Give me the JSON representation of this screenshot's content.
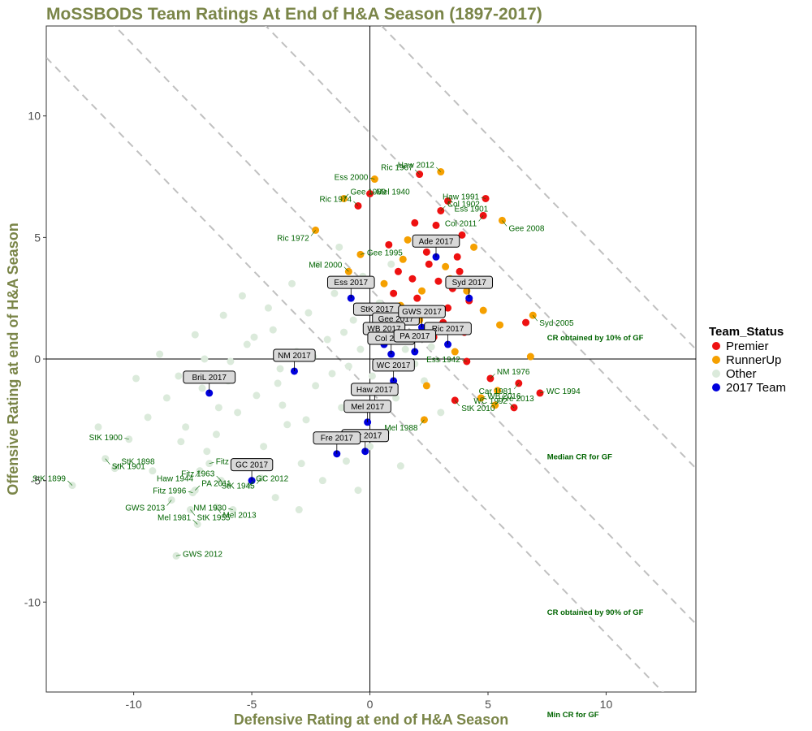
{
  "chart_data": {
    "type": "scatter",
    "title": "MoSSBODS Team Ratings At End of H&A Season (1897-2017)",
    "xlabel": "Defensive Rating at end of H&A Season",
    "ylabel": "Offensive Rating at end of H&A Season",
    "xlim": [
      -13.7,
      13.8
    ],
    "ylim": [
      -13.7,
      13.7
    ],
    "x_ticks": [
      -10,
      -5,
      0,
      5,
      10
    ],
    "y_ticks": [
      -10,
      -5,
      0,
      5,
      10
    ],
    "grid": false,
    "colors": {
      "title": "#7a8548",
      "Premier": "#ee1111",
      "RunnerUp": "#f5a000",
      "Other": "#dbeadb",
      "2017 Team": "#0000dd",
      "label_text": "#006400",
      "reference_line": "#c0c0c0"
    },
    "legend": {
      "title": "Team_Status",
      "position": "right",
      "entries": [
        "Premier",
        "RunnerUp",
        "Other",
        "2017 Team"
      ]
    },
    "reference_lines": [
      {
        "label": "CR obtained by 10% of GF",
        "intercept": 14.2
      },
      {
        "label": "Median CR for GF",
        "intercept": 9.3
      },
      {
        "label": "CR obtained by 90% of GF",
        "intercept": 2.9
      },
      {
        "label": "Min CR for GF",
        "intercept": -1.3
      }
    ],
    "series": [
      {
        "name": "Premier",
        "points": [
          {
            "x": 2.1,
            "y": 7.6,
            "label": "Ric 1967"
          },
          {
            "x": 3.3,
            "y": 6.5,
            "label": "Ess 1901"
          },
          {
            "x": 4.9,
            "y": 6.6,
            "label": "Haw 1991"
          },
          {
            "x": 3.0,
            "y": 6.1,
            "label": "Col 1902"
          },
          {
            "x": 4.8,
            "y": 5.9,
            "label": "Col 2011"
          },
          {
            "x": 0.0,
            "y": 6.8,
            "label": "Mel 1940"
          },
          {
            "x": -0.5,
            "y": 6.3,
            "label": "Ric 1974"
          },
          {
            "x": 6.6,
            "y": 1.5,
            "label": ""
          },
          {
            "x": 4.1,
            "y": -0.1,
            "label": "Ess 1942"
          },
          {
            "x": 5.1,
            "y": -0.8,
            "label": "NM 1976"
          },
          {
            "x": 6.3,
            "y": -1.0,
            "label": "Car 1981"
          },
          {
            "x": 7.2,
            "y": -1.4,
            "label": "WC 1994"
          },
          {
            "x": 6.1,
            "y": -2.0,
            "label": "WC 1992"
          },
          {
            "x": 3.6,
            "y": -1.7,
            "label": "StK 2010"
          },
          {
            "x": 1.9,
            "y": 5.6,
            "label": ""
          },
          {
            "x": 2.8,
            "y": 5.5,
            "label": ""
          },
          {
            "x": 3.9,
            "y": 5.1,
            "label": ""
          },
          {
            "x": 2.4,
            "y": 4.4,
            "label": ""
          },
          {
            "x": 3.7,
            "y": 4.2,
            "label": ""
          },
          {
            "x": 1.2,
            "y": 3.6,
            "label": ""
          },
          {
            "x": 2.9,
            "y": 3.2,
            "label": ""
          },
          {
            "x": 3.5,
            "y": 2.9,
            "label": ""
          },
          {
            "x": 2.0,
            "y": 2.5,
            "label": ""
          },
          {
            "x": 4.2,
            "y": 2.4,
            "label": ""
          },
          {
            "x": 1.5,
            "y": 1.9,
            "label": ""
          },
          {
            "x": 3.1,
            "y": 1.5,
            "label": ""
          },
          {
            "x": 2.5,
            "y": 3.9,
            "label": ""
          },
          {
            "x": 4.6,
            "y": 3.2,
            "label": ""
          },
          {
            "x": 0.8,
            "y": 4.7,
            "label": ""
          },
          {
            "x": 3.3,
            "y": 2.1,
            "label": ""
          },
          {
            "x": 1.0,
            "y": 2.7,
            "label": ""
          },
          {
            "x": 4.0,
            "y": 1.1,
            "label": ""
          },
          {
            "x": 2.7,
            "y": 0.9,
            "label": ""
          },
          {
            "x": 1.8,
            "y": 3.3,
            "label": ""
          },
          {
            "x": 3.8,
            "y": 3.6,
            "label": ""
          },
          {
            "x": 0.9,
            "y": 1.3,
            "label": ""
          }
        ]
      },
      {
        "name": "RunnerUp",
        "points": [
          {
            "x": 3.0,
            "y": 7.7,
            "label": "Haw 2012"
          },
          {
            "x": 5.6,
            "y": 5.7,
            "label": "Gee 2008"
          },
          {
            "x": 0.2,
            "y": 7.4,
            "label": "Ess 2000"
          },
          {
            "x": -1.1,
            "y": 6.6,
            "label": "Gee 1989"
          },
          {
            "x": -2.3,
            "y": 5.3,
            "label": "Ric 1972"
          },
          {
            "x": -0.4,
            "y": 4.3,
            "label": "Gee 1995"
          },
          {
            "x": -0.9,
            "y": 3.6,
            "label": "Mel 2000"
          },
          {
            "x": 6.9,
            "y": 1.8,
            "label": "Syd 2005"
          },
          {
            "x": 5.4,
            "y": -1.3,
            "label": ""
          },
          {
            "x": 5.3,
            "y": -1.9,
            "label": "Fre 2013"
          },
          {
            "x": 2.3,
            "y": -2.5,
            "label": "Mel 1988"
          },
          {
            "x": 4.7,
            "y": -1.6,
            "label": "WB 2016"
          },
          {
            "x": 1.6,
            "y": 4.9,
            "label": ""
          },
          {
            "x": 2.6,
            "y": 4.8,
            "label": ""
          },
          {
            "x": 3.4,
            "y": 3.3,
            "label": ""
          },
          {
            "x": 2.2,
            "y": 2.8,
            "label": ""
          },
          {
            "x": 1.3,
            "y": 2.2,
            "label": ""
          },
          {
            "x": 4.4,
            "y": 4.6,
            "label": ""
          },
          {
            "x": 2.1,
            "y": 1.6,
            "label": ""
          },
          {
            "x": 3.6,
            "y": 0.3,
            "label": ""
          },
          {
            "x": 0.6,
            "y": 3.1,
            "label": ""
          },
          {
            "x": 4.8,
            "y": 2.0,
            "label": ""
          },
          {
            "x": 1.4,
            "y": 4.1,
            "label": ""
          },
          {
            "x": 3.2,
            "y": 3.8,
            "label": ""
          },
          {
            "x": 5.5,
            "y": 1.4,
            "label": ""
          },
          {
            "x": 2.4,
            "y": -1.1,
            "label": ""
          },
          {
            "x": 6.8,
            "y": 0.1,
            "label": ""
          },
          {
            "x": 4.1,
            "y": 2.8,
            "label": ""
          }
        ]
      },
      {
        "name": "2017 Team",
        "points": [
          {
            "x": 2.8,
            "y": 4.2,
            "label": "Ade 2017"
          },
          {
            "x": 4.2,
            "y": 2.5,
            "label": "Syd 2017"
          },
          {
            "x": -0.8,
            "y": 2.5,
            "label": "Ess 2017"
          },
          {
            "x": 0.3,
            "y": 1.4,
            "label": "StK 2017"
          },
          {
            "x": 1.1,
            "y": 1.0,
            "label": "Gee 2017"
          },
          {
            "x": 2.2,
            "y": 1.3,
            "label": "GWS 2017"
          },
          {
            "x": 0.6,
            "y": 0.6,
            "label": "WB 2017"
          },
          {
            "x": 3.3,
            "y": 0.6,
            "label": "Ric 2017"
          },
          {
            "x": 0.9,
            "y": 0.2,
            "label": "Col 2017"
          },
          {
            "x": 1.9,
            "y": 0.3,
            "label": "PA 2017"
          },
          {
            "x": 1.0,
            "y": -0.9,
            "label": "WC 2017"
          },
          {
            "x": -3.2,
            "y": -0.5,
            "label": "NM 2017"
          },
          {
            "x": -6.8,
            "y": -1.4,
            "label": "BriL 2017"
          },
          {
            "x": 0.2,
            "y": -1.9,
            "label": "Haw 2017"
          },
          {
            "x": -0.1,
            "y": -2.6,
            "label": "Mel 2017"
          },
          {
            "x": -0.2,
            "y": -3.8,
            "label": "Car 2017"
          },
          {
            "x": -1.4,
            "y": -3.9,
            "label": "Fre 2017"
          },
          {
            "x": -5.0,
            "y": -5.0,
            "label": "GC 2017"
          }
        ]
      },
      {
        "name": "Other",
        "points": [
          {
            "x": -12.6,
            "y": -5.2,
            "label": "StK 1899"
          },
          {
            "x": -11.2,
            "y": -4.1,
            "label": "StK 1901"
          },
          {
            "x": -10.2,
            "y": -3.3,
            "label": "StK 1900"
          },
          {
            "x": -10.8,
            "y": -4.5,
            "label": "StK 1898"
          },
          {
            "x": -8.4,
            "y": -5.8,
            "label": "GWS 2013"
          },
          {
            "x": -8.2,
            "y": -8.1,
            "label": "GWS 2012"
          },
          {
            "x": -7.3,
            "y": -6.8,
            "label": "Mel 1981"
          },
          {
            "x": -7.6,
            "y": -6.2,
            "label": "StK 1955"
          },
          {
            "x": -7.5,
            "y": -5.5,
            "label": "Fitz 1996"
          },
          {
            "x": -7.4,
            "y": -5.4,
            "label": "PA 2011"
          },
          {
            "x": -7.2,
            "y": -4.6,
            "label": "Haw 1944"
          },
          {
            "x": -6.8,
            "y": -4.3,
            "label": "Fitz 1995"
          },
          {
            "x": -6.3,
            "y": -5.0,
            "label": "Fitz 1963"
          },
          {
            "x": -6.5,
            "y": -6.1,
            "label": "Mel 2013"
          },
          {
            "x": -5.8,
            "y": -6.2,
            "label": "NM 1930"
          },
          {
            "x": -5.1,
            "y": -5.2,
            "label": "GC 2012"
          },
          {
            "x": -4.6,
            "y": -4.9,
            "label": "StK 1945"
          },
          {
            "x": -9.4,
            "y": -2.4,
            "label": ""
          },
          {
            "x": -8.6,
            "y": -1.6,
            "label": ""
          },
          {
            "x": -7.8,
            "y": -2.8,
            "label": ""
          },
          {
            "x": -7.1,
            "y": -1.2,
            "label": ""
          },
          {
            "x": -6.5,
            "y": -3.1,
            "label": ""
          },
          {
            "x": -6.0,
            "y": -0.9,
            "label": ""
          },
          {
            "x": -5.6,
            "y": -2.2,
            "label": ""
          },
          {
            "x": -5.2,
            "y": 0.6,
            "label": ""
          },
          {
            "x": -4.8,
            "y": -1.5,
            "label": ""
          },
          {
            "x": -4.5,
            "y": -3.6,
            "label": ""
          },
          {
            "x": -4.1,
            "y": 1.2,
            "label": ""
          },
          {
            "x": -3.8,
            "y": -0.4,
            "label": ""
          },
          {
            "x": -3.5,
            "y": -2.7,
            "label": ""
          },
          {
            "x": -3.1,
            "y": 0.3,
            "label": ""
          },
          {
            "x": -2.9,
            "y": -4.3,
            "label": ""
          },
          {
            "x": -2.6,
            "y": 1.9,
            "label": ""
          },
          {
            "x": -2.3,
            "y": -1.1,
            "label": ""
          },
          {
            "x": -2.0,
            "y": -3.3,
            "label": ""
          },
          {
            "x": -1.8,
            "y": 0.8,
            "label": ""
          },
          {
            "x": -1.5,
            "y": 2.7,
            "label": ""
          },
          {
            "x": -1.2,
            "y": -2.0,
            "label": ""
          },
          {
            "x": -0.9,
            "y": -0.3,
            "label": ""
          },
          {
            "x": -0.7,
            "y": 1.6,
            "label": ""
          },
          {
            "x": -0.5,
            "y": -5.4,
            "label": ""
          },
          {
            "x": -0.3,
            "y": 3.4,
            "label": ""
          },
          {
            "x": 0.1,
            "y": -0.7,
            "label": ""
          },
          {
            "x": 0.4,
            "y": 2.3,
            "label": ""
          },
          {
            "x": 0.7,
            "y": -3.0,
            "label": ""
          },
          {
            "x": 1.1,
            "y": -1.6,
            "label": ""
          },
          {
            "x": 1.5,
            "y": 0.4,
            "label": ""
          },
          {
            "x": 1.9,
            "y": -0.2,
            "label": ""
          },
          {
            "x": 2.3,
            "y": -0.9,
            "label": ""
          },
          {
            "x": 2.6,
            "y": 0.5,
            "label": ""
          },
          {
            "x": -9.9,
            "y": -0.8,
            "label": ""
          },
          {
            "x": -8.9,
            "y": 0.2,
            "label": ""
          },
          {
            "x": -7.4,
            "y": 1.0,
            "label": ""
          },
          {
            "x": -6.2,
            "y": 1.8,
            "label": ""
          },
          {
            "x": -5.4,
            "y": 2.6,
            "label": ""
          },
          {
            "x": -4.3,
            "y": 2.1,
            "label": ""
          },
          {
            "x": -3.3,
            "y": 3.1,
            "label": ""
          },
          {
            "x": -2.2,
            "y": 3.9,
            "label": ""
          },
          {
            "x": -1.3,
            "y": 4.6,
            "label": ""
          },
          {
            "x": -4.0,
            "y": -5.7,
            "label": ""
          },
          {
            "x": -3.0,
            "y": -6.2,
            "label": ""
          },
          {
            "x": -2.0,
            "y": -5.0,
            "label": ""
          },
          {
            "x": -1.0,
            "y": -4.2,
            "label": ""
          },
          {
            "x": 0.0,
            "y": -3.6,
            "label": ""
          },
          {
            "x": 1.3,
            "y": -4.4,
            "label": ""
          },
          {
            "x": -6.9,
            "y": -3.8,
            "label": ""
          },
          {
            "x": -8.0,
            "y": -3.4,
            "label": ""
          },
          {
            "x": -9.2,
            "y": -4.6,
            "label": ""
          },
          {
            "x": -11.5,
            "y": -2.8,
            "label": ""
          },
          {
            "x": 3.0,
            "y": -2.2,
            "label": ""
          },
          {
            "x": -3.7,
            "y": -1.9,
            "label": ""
          },
          {
            "x": -2.7,
            "y": -2.5,
            "label": ""
          },
          {
            "x": -1.6,
            "y": -0.6,
            "label": ""
          },
          {
            "x": -0.4,
            "y": 0.4,
            "label": ""
          },
          {
            "x": 0.6,
            "y": 1.8,
            "label": ""
          },
          {
            "x": -5.9,
            "y": -0.1,
            "label": ""
          },
          {
            "x": -4.9,
            "y": 0.9,
            "label": ""
          },
          {
            "x": -3.9,
            "y": -1.0,
            "label": ""
          },
          {
            "x": -2.4,
            "y": 0.1,
            "label": ""
          },
          {
            "x": -1.1,
            "y": 1.1,
            "label": ""
          },
          {
            "x": 0.9,
            "y": 3.9,
            "label": ""
          },
          {
            "x": -7.0,
            "y": 0.0,
            "label": ""
          },
          {
            "x": -8.1,
            "y": -0.7,
            "label": ""
          },
          {
            "x": -6.4,
            "y": -2.0,
            "label": ""
          }
        ]
      }
    ]
  }
}
